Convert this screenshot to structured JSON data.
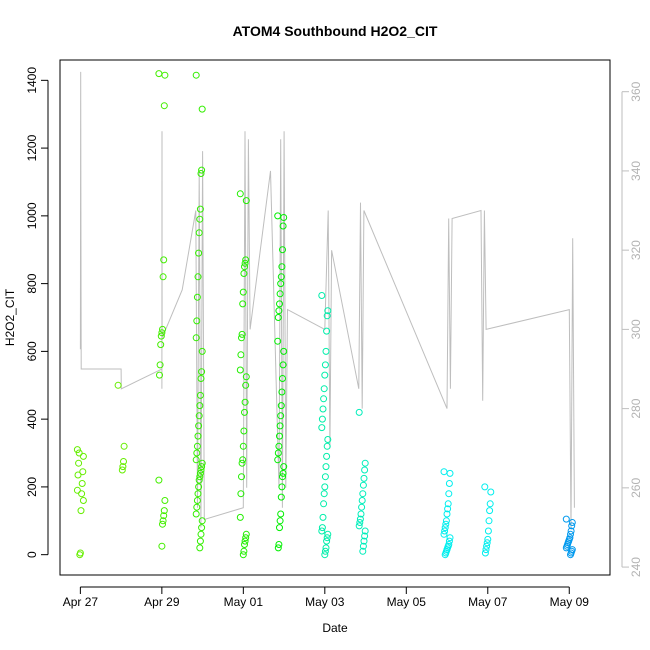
{
  "chart_data": {
    "type": "scatter",
    "title": "ATOM4 Southbound H2O2_CIT",
    "xlabel": "Date",
    "ylabel": "H2O2_CIT",
    "ylim": [
      -60,
      1460
    ],
    "y_ticks": [
      0,
      200,
      400,
      600,
      800,
      1000,
      1200,
      1400
    ],
    "xlim": [
      "2018-04-26 12:00",
      "2018-05-10 00:00"
    ],
    "x_ticks": [
      {
        "date": "2018-04-27",
        "label": "Apr 27"
      },
      {
        "date": "2018-04-29",
        "label": "Apr 29"
      },
      {
        "date": "2018-05-01",
        "label": "May 01"
      },
      {
        "date": "2018-05-03",
        "label": "May 03"
      },
      {
        "date": "2018-05-05",
        "label": "May 05"
      },
      {
        "date": "2018-05-07",
        "label": "May 07"
      },
      {
        "date": "2018-05-09",
        "label": "May 09"
      }
    ],
    "right_axis": {
      "ylim": [
        238,
        368
      ],
      "ticks": [
        240,
        260,
        280,
        300,
        320,
        340,
        360
      ],
      "color": "#bebebe"
    },
    "grid": false,
    "legend": "none",
    "series": [
      {
        "date": "2018-04-27",
        "color": "#66ee00",
        "points": [
          [
            0.0,
            310
          ],
          [
            0.0,
            290
          ],
          [
            0.0,
            245
          ],
          [
            0.0,
            210
          ],
          [
            0.0,
            180
          ],
          [
            0.0,
            130
          ],
          [
            0.0,
            5
          ],
          [
            0.0,
            0
          ],
          [
            0.0,
            300
          ],
          [
            0.0,
            270
          ],
          [
            0.0,
            235
          ],
          [
            0.0,
            190
          ],
          [
            0.0,
            160
          ]
        ]
      },
      {
        "date": "2018-04-28",
        "color": "#66ee00",
        "points": [
          [
            0.0,
            500
          ],
          [
            0.0,
            320
          ],
          [
            0.0,
            275
          ],
          [
            0.0,
            260
          ],
          [
            0.0,
            250
          ]
        ]
      },
      {
        "date": "2018-04-29",
        "color": "#44ee00",
        "points": [
          [
            0.0,
            1420
          ],
          [
            0.0,
            1415
          ],
          [
            0.0,
            1325
          ],
          [
            0.0,
            870
          ],
          [
            0.0,
            820
          ],
          [
            0.0,
            665
          ],
          [
            0.0,
            655
          ],
          [
            0.0,
            645
          ],
          [
            0.0,
            620
          ],
          [
            0.0,
            560
          ],
          [
            0.0,
            530
          ],
          [
            0.0,
            220
          ],
          [
            0.0,
            160
          ],
          [
            0.0,
            130
          ],
          [
            0.0,
            115
          ],
          [
            0.0,
            100
          ],
          [
            0.0,
            90
          ],
          [
            0.0,
            25
          ]
        ]
      },
      {
        "date": "2018-04-29T22",
        "color": "#33ee00",
        "points": [
          [
            0.0,
            1415
          ],
          [
            0.0,
            1315
          ],
          [
            0.0,
            1135
          ],
          [
            0.0,
            1125
          ],
          [
            0.0,
            1020
          ],
          [
            0.0,
            990
          ],
          [
            0.0,
            950
          ],
          [
            0.0,
            890
          ],
          [
            0.0,
            820
          ],
          [
            0.0,
            760
          ],
          [
            0.0,
            690
          ],
          [
            0.0,
            640
          ],
          [
            0.0,
            600
          ],
          [
            0.0,
            540
          ],
          [
            0.0,
            520
          ],
          [
            0.0,
            470
          ],
          [
            0.0,
            440
          ],
          [
            0.0,
            410
          ],
          [
            0.0,
            380
          ],
          [
            0.0,
            350
          ],
          [
            0.0,
            320
          ],
          [
            0.0,
            300
          ],
          [
            0.0,
            280
          ],
          [
            0.0,
            270
          ],
          [
            0.0,
            260
          ],
          [
            0.0,
            250
          ],
          [
            0.0,
            240
          ],
          [
            0.0,
            230
          ],
          [
            0.0,
            220
          ],
          [
            0.0,
            200
          ],
          [
            0.0,
            180
          ],
          [
            0.0,
            160
          ],
          [
            0.0,
            140
          ],
          [
            0.0,
            120
          ],
          [
            0.0,
            100
          ],
          [
            0.0,
            80
          ],
          [
            0.0,
            60
          ],
          [
            0.0,
            40
          ],
          [
            0.0,
            20
          ]
        ]
      },
      {
        "date": "2018-05-01",
        "color": "#22ee00",
        "points": [
          [
            0.0,
            1065
          ],
          [
            0.0,
            1045
          ],
          [
            0.0,
            870
          ],
          [
            0.0,
            860
          ],
          [
            0.0,
            850
          ],
          [
            0.0,
            830
          ],
          [
            0.0,
            775
          ],
          [
            0.0,
            740
          ],
          [
            0.0,
            650
          ],
          [
            0.0,
            640
          ],
          [
            0.0,
            590
          ],
          [
            0.0,
            545
          ],
          [
            0.0,
            525
          ],
          [
            0.0,
            500
          ],
          [
            0.0,
            450
          ],
          [
            0.0,
            420
          ],
          [
            0.0,
            365
          ],
          [
            0.0,
            320
          ],
          [
            0.0,
            280
          ],
          [
            0.0,
            270
          ],
          [
            0.0,
            230
          ],
          [
            0.0,
            180
          ],
          [
            0.0,
            110
          ],
          [
            0.0,
            60
          ],
          [
            0.0,
            50
          ],
          [
            0.0,
            40
          ],
          [
            0.0,
            30
          ],
          [
            0.0,
            10
          ],
          [
            0.0,
            0
          ]
        ]
      },
      {
        "date": "2018-05-01T22",
        "color": "#00ee00",
        "points": [
          [
            0.0,
            1000
          ],
          [
            0.0,
            995
          ],
          [
            0.0,
            970
          ],
          [
            0.0,
            900
          ],
          [
            0.0,
            850
          ],
          [
            0.0,
            820
          ],
          [
            0.0,
            800
          ],
          [
            0.0,
            770
          ],
          [
            0.0,
            740
          ],
          [
            0.0,
            720
          ],
          [
            0.0,
            700
          ],
          [
            0.0,
            630
          ],
          [
            0.0,
            600
          ],
          [
            0.0,
            560
          ],
          [
            0.0,
            520
          ],
          [
            0.0,
            480
          ],
          [
            0.0,
            440
          ],
          [
            0.0,
            410
          ],
          [
            0.0,
            380
          ],
          [
            0.0,
            350
          ],
          [
            0.0,
            320
          ],
          [
            0.0,
            300
          ],
          [
            0.0,
            280
          ],
          [
            0.0,
            260
          ],
          [
            0.0,
            240
          ],
          [
            0.0,
            230
          ],
          [
            0.0,
            200
          ],
          [
            0.0,
            170
          ],
          [
            0.0,
            120
          ],
          [
            0.0,
            100
          ],
          [
            0.0,
            80
          ],
          [
            0.0,
            30
          ],
          [
            0.0,
            20
          ]
        ]
      },
      {
        "date": "2018-05-03",
        "color": "#00eeaa",
        "points": [
          [
            0.0,
            765
          ],
          [
            0.0,
            720
          ],
          [
            0.0,
            705
          ],
          [
            0.0,
            660
          ],
          [
            0.0,
            600
          ],
          [
            0.0,
            560
          ],
          [
            0.0,
            530
          ],
          [
            0.0,
            490
          ],
          [
            0.0,
            460
          ],
          [
            0.0,
            430
          ],
          [
            0.0,
            400
          ],
          [
            0.0,
            375
          ],
          [
            0.0,
            340
          ],
          [
            0.0,
            320
          ],
          [
            0.0,
            290
          ],
          [
            0.0,
            260
          ],
          [
            0.0,
            230
          ],
          [
            0.0,
            200
          ],
          [
            0.0,
            180
          ],
          [
            0.0,
            150
          ],
          [
            0.0,
            110
          ],
          [
            0.0,
            80
          ],
          [
            0.0,
            70
          ],
          [
            0.0,
            60
          ],
          [
            0.0,
            50
          ],
          [
            0.0,
            40
          ],
          [
            0.0,
            20
          ],
          [
            0.0,
            10
          ],
          [
            0.0,
            0
          ]
        ]
      },
      {
        "date": "2018-05-03T22",
        "color": "#00eebb",
        "points": [
          [
            0.0,
            420
          ],
          [
            0.0,
            270
          ],
          [
            0.0,
            250
          ],
          [
            0.0,
            225
          ],
          [
            0.0,
            205
          ],
          [
            0.0,
            180
          ],
          [
            0.0,
            160
          ],
          [
            0.0,
            140
          ],
          [
            0.0,
            120
          ],
          [
            0.0,
            105
          ],
          [
            0.0,
            95
          ],
          [
            0.0,
            85
          ],
          [
            0.0,
            70
          ],
          [
            0.0,
            55
          ],
          [
            0.0,
            40
          ],
          [
            0.0,
            25
          ],
          [
            0.0,
            10
          ]
        ]
      },
      {
        "date": "2018-05-06",
        "color": "#00eeee",
        "points": [
          [
            0.0,
            245
          ],
          [
            0.0,
            240
          ],
          [
            0.0,
            210
          ],
          [
            0.0,
            180
          ],
          [
            0.0,
            150
          ],
          [
            0.0,
            135
          ],
          [
            0.0,
            120
          ],
          [
            0.0,
            100
          ],
          [
            0.0,
            90
          ],
          [
            0.0,
            80
          ],
          [
            0.0,
            70
          ],
          [
            0.0,
            60
          ],
          [
            0.0,
            50
          ],
          [
            0.0,
            40
          ],
          [
            0.0,
            30
          ],
          [
            0.0,
            25
          ],
          [
            0.0,
            20
          ],
          [
            0.0,
            15
          ],
          [
            0.0,
            10
          ],
          [
            0.0,
            5
          ],
          [
            0.0,
            0
          ]
        ]
      },
      {
        "date": "2018-05-07",
        "color": "#00eeee",
        "points": [
          [
            0.0,
            200
          ],
          [
            0.0,
            185
          ],
          [
            0.0,
            150
          ],
          [
            0.0,
            130
          ],
          [
            0.0,
            100
          ],
          [
            0.0,
            70
          ],
          [
            0.0,
            45
          ],
          [
            0.0,
            35
          ],
          [
            0.0,
            25
          ],
          [
            0.0,
            15
          ],
          [
            0.0,
            5
          ]
        ]
      },
      {
        "date": "2018-05-09",
        "color": "#0099ee",
        "points": [
          [
            0.0,
            105
          ],
          [
            0.0,
            95
          ],
          [
            0.0,
            85
          ],
          [
            0.0,
            70
          ],
          [
            0.0,
            60
          ],
          [
            0.0,
            50
          ],
          [
            0.0,
            45
          ],
          [
            0.0,
            40
          ],
          [
            0.0,
            35
          ],
          [
            0.0,
            30
          ],
          [
            0.0,
            25
          ],
          [
            0.0,
            20
          ],
          [
            0.0,
            15
          ],
          [
            0.0,
            10
          ],
          [
            0.0,
            5
          ],
          [
            0.0,
            0
          ]
        ]
      }
    ],
    "track": [
      [
        "2018-04-27 00:00",
        295
      ],
      [
        "2018-04-27 00:10",
        365
      ],
      [
        "2018-04-27 00:20",
        330
      ],
      [
        "2018-04-27 00:30",
        290
      ],
      [
        "2018-04-28 00:00",
        290
      ],
      [
        "2018-04-28 00:05",
        285
      ],
      [
        "2018-04-29 00:00",
        290
      ],
      [
        "2018-04-29 00:00",
        285
      ],
      [
        "2018-04-29 00:05",
        350
      ],
      [
        "2018-04-29 00:10",
        300
      ],
      [
        "2018-04-29 00:20",
        298
      ],
      [
        "2018-04-29 12:00",
        310
      ],
      [
        "2018-04-29 20:00",
        330
      ],
      [
        "2018-04-29 21:00",
        255
      ],
      [
        "2018-04-29 22:00",
        340
      ],
      [
        "2018-04-29 23:00",
        250
      ],
      [
        "2018-04-30 00:00",
        345
      ],
      [
        "2018-04-30 01:00",
        252
      ],
      [
        "2018-05-01 00:00",
        255
      ],
      [
        "2018-05-01 01:00",
        350
      ],
      [
        "2018-05-01 02:00",
        260
      ],
      [
        "2018-05-01 03:00",
        348
      ],
      [
        "2018-05-01 04:00",
        300
      ],
      [
        "2018-05-01 16:00",
        340
      ],
      [
        "2018-05-01 21:00",
        260
      ],
      [
        "2018-05-01 22:00",
        348
      ],
      [
        "2018-05-01 23:00",
        255
      ],
      [
        "2018-05-02 00:00",
        350
      ],
      [
        "2018-05-02 01:00",
        260
      ],
      [
        "2018-05-02 02:00",
        305
      ],
      [
        "2018-05-03 00:00",
        300
      ],
      [
        "2018-05-03 02:00",
        330
      ],
      [
        "2018-05-03 03:00",
        270
      ],
      [
        "2018-05-03 04:00",
        320
      ],
      [
        "2018-05-03 20:00",
        285
      ],
      [
        "2018-05-03 21:00",
        332
      ],
      [
        "2018-05-03 22:00",
        280
      ],
      [
        "2018-05-03 23:00",
        330
      ],
      [
        "2018-05-06 00:00",
        280
      ],
      [
        "2018-05-06 01:00",
        328
      ],
      [
        "2018-05-06 02:00",
        285
      ],
      [
        "2018-05-06 03:00",
        328
      ],
      [
        "2018-05-06 20:00",
        330
      ],
      [
        "2018-05-06 21:00",
        282
      ],
      [
        "2018-05-06 22:00",
        330
      ],
      [
        "2018-05-06 23:00",
        300
      ],
      [
        "2018-05-09 00:00",
        305
      ],
      [
        "2018-05-09 01:00",
        250
      ],
      [
        "2018-05-09 02:00",
        323
      ],
      [
        "2018-05-09 03:00",
        255
      ]
    ]
  }
}
